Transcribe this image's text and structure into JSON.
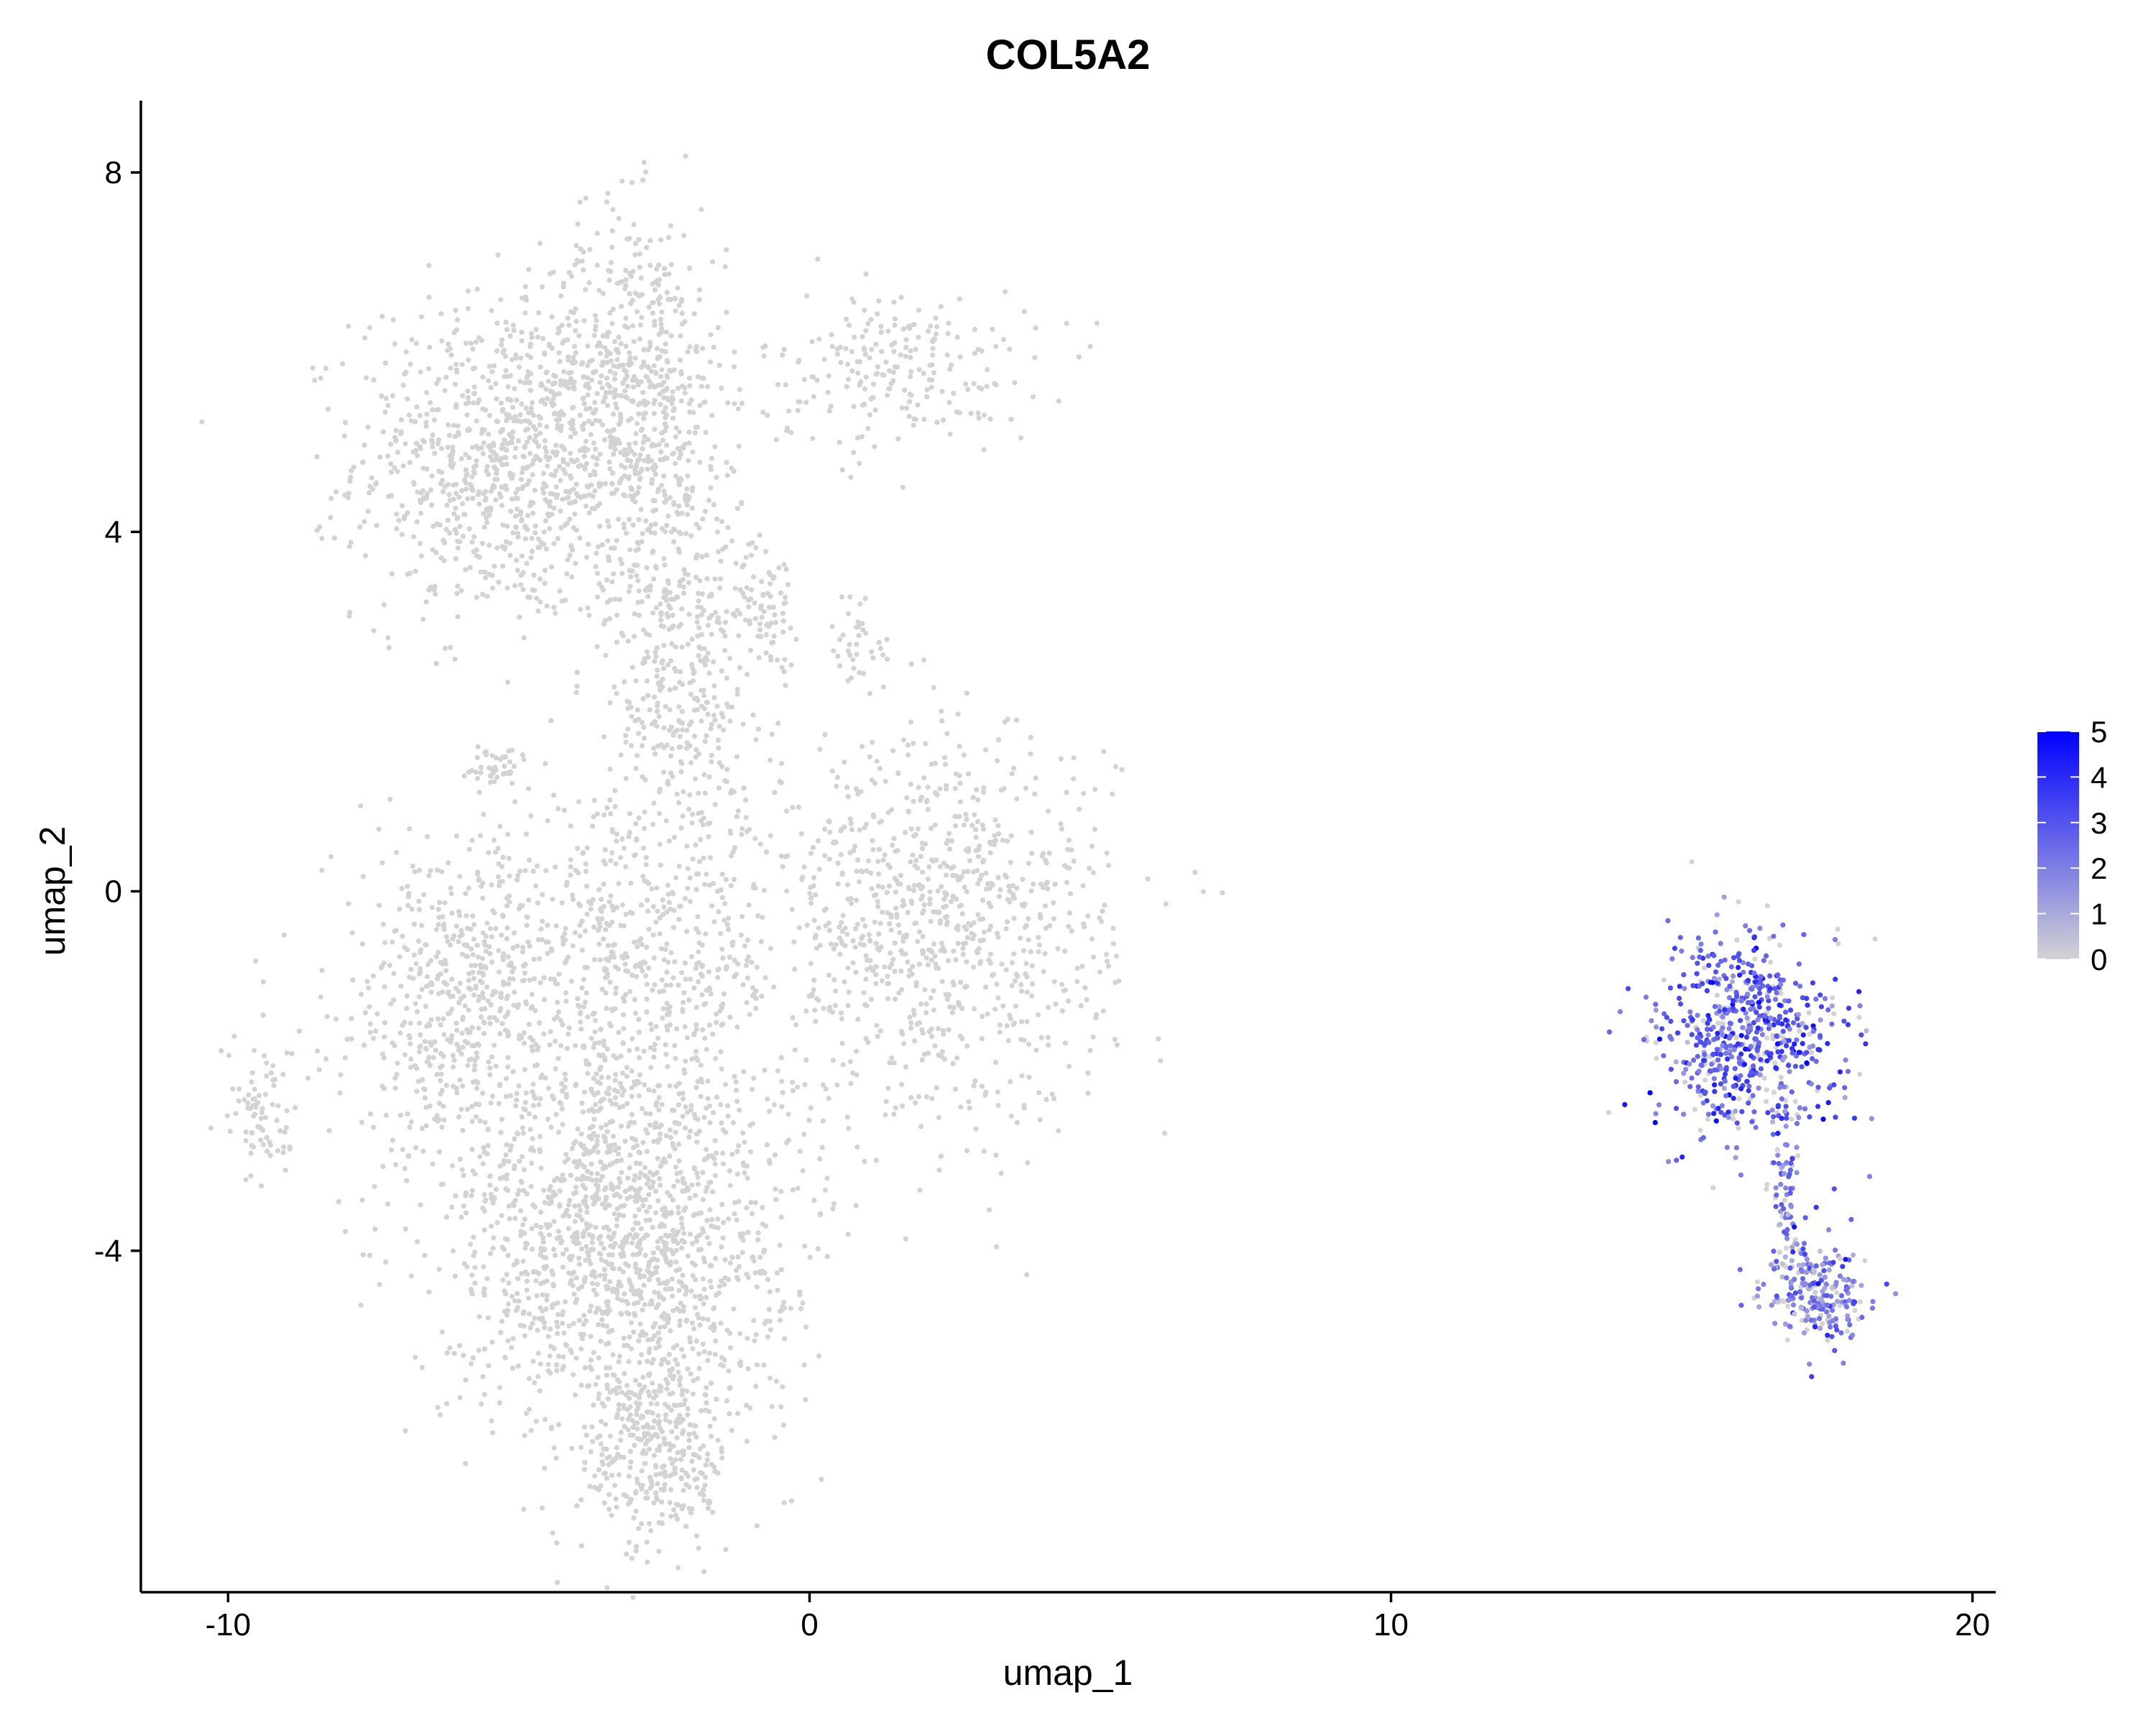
{
  "chart_data": {
    "type": "scatter",
    "title": "COL5A2",
    "xlabel": "umap_1",
    "ylabel": "umap_2",
    "xlim": [
      -11.5,
      20.4
    ],
    "ylim": [
      -7.8,
      8.8
    ],
    "x_ticks": [
      -10,
      0,
      10,
      20
    ],
    "x_tick_labels": [
      "-10",
      "0",
      "10",
      "20"
    ],
    "y_ticks": [
      -4,
      0,
      4,
      8
    ],
    "y_tick_labels": [
      "-4",
      "0",
      "4",
      "8"
    ],
    "grid": false,
    "legend": {
      "placement": "right",
      "kind": "colorbar",
      "min": 0,
      "max": 5,
      "ticks": [
        0,
        1,
        2,
        3,
        4,
        5
      ],
      "tick_labels": [
        "0",
        "1",
        "2",
        "3",
        "4",
        "5"
      ],
      "color_low": "#d3d3d3",
      "color_high": "#0000ff"
    },
    "colors": {
      "low_expression": "#d3d3d3",
      "high_expression": "#0000ff",
      "axis": "#000000"
    },
    "clusters": [
      {
        "region": "upper-left arm",
        "center": [
          -5.2,
          4.8
        ],
        "spread": [
          1.3,
          0.9
        ],
        "n": 900,
        "expression": 0
      },
      {
        "region": "upper-middle arm",
        "center": [
          -3.0,
          5.6
        ],
        "spread": [
          0.8,
          1.0
        ],
        "n": 550,
        "expression": 0
      },
      {
        "region": "central stem",
        "center": [
          -2.2,
          2.6
        ],
        "spread": [
          0.6,
          1.3
        ],
        "n": 450,
        "expression": 0
      },
      {
        "region": "upper-right clusters",
        "center": [
          1.5,
          5.8
        ],
        "spread": [
          1.2,
          0.45
        ],
        "n": 220,
        "expression": 0
      },
      {
        "region": "small strand",
        "center": [
          -0.7,
          3.2
        ],
        "spread": [
          0.25,
          0.35
        ],
        "n": 70,
        "expression": 0
      },
      {
        "region": "small strand 2",
        "center": [
          0.8,
          2.8
        ],
        "spread": [
          0.25,
          0.3
        ],
        "n": 35,
        "expression": 0
      },
      {
        "region": "left blob",
        "center": [
          -6.0,
          -1.2
        ],
        "spread": [
          1.1,
          0.9
        ],
        "n": 500,
        "expression": 0
      },
      {
        "region": "center blob",
        "center": [
          -3.2,
          -0.8
        ],
        "spread": [
          1.4,
          0.9
        ],
        "n": 550,
        "expression": 0
      },
      {
        "region": "right lobe",
        "center": [
          2.2,
          -0.4
        ],
        "spread": [
          1.5,
          1.1
        ],
        "n": 900,
        "expression": 0
      },
      {
        "region": "lower mass",
        "center": [
          -3.3,
          -3.8
        ],
        "spread": [
          1.5,
          1.1
        ],
        "n": 1500,
        "expression": 0
      },
      {
        "region": "lower tail",
        "center": [
          -2.6,
          -6.2
        ],
        "spread": [
          0.6,
          0.6
        ],
        "n": 350,
        "expression": 0
      },
      {
        "region": "small left island",
        "center": [
          -5.4,
          1.4
        ],
        "spread": [
          0.3,
          0.12
        ],
        "n": 40,
        "expression": 0
      },
      {
        "region": "far-left strand",
        "center": [
          -9.4,
          -2.5
        ],
        "spread": [
          0.3,
          0.4
        ],
        "n": 80,
        "expression": 0
      },
      {
        "region": "right island head",
        "center": [
          16.2,
          -1.6
        ],
        "spread": [
          0.75,
          0.55
        ],
        "n": 650,
        "expression": 2.8
      },
      {
        "region": "right island neck",
        "center": [
          16.8,
          -3.4
        ],
        "spread": [
          0.15,
          0.5
        ],
        "n": 70,
        "expression": 2.5
      },
      {
        "region": "right island base",
        "center": [
          17.3,
          -4.5
        ],
        "spread": [
          0.45,
          0.3
        ],
        "n": 230,
        "expression": 2.0
      }
    ]
  }
}
